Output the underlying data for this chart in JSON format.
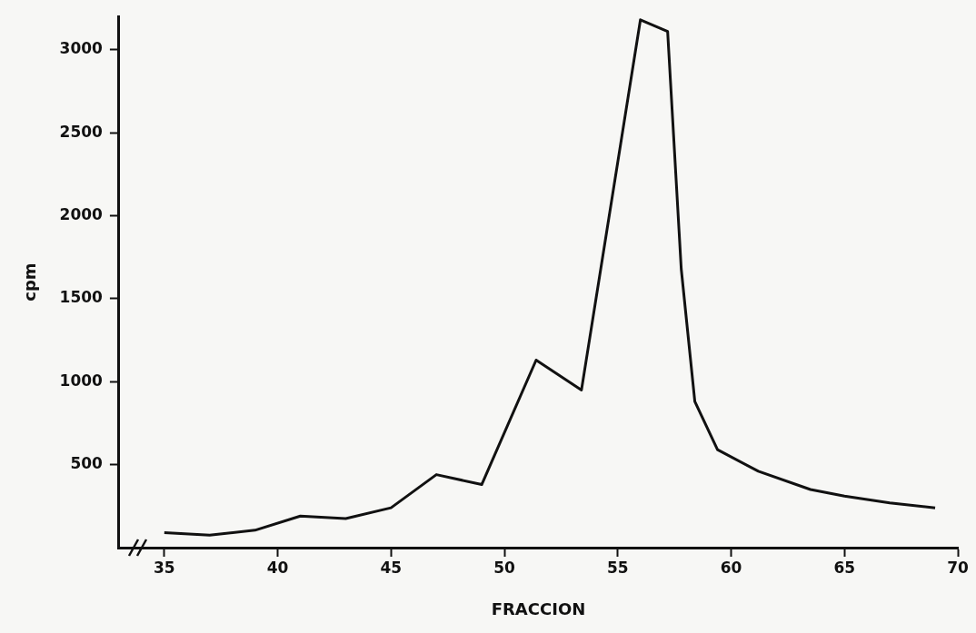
{
  "chart_data": {
    "type": "line",
    "xlabel": "FRACCION",
    "ylabel": "cpm",
    "x": [
      35,
      37,
      39,
      41,
      43,
      45,
      47,
      49,
      51.4,
      53.4,
      56,
      57.2,
      57.8,
      58.4,
      59.4,
      61.2,
      63.5,
      65,
      67,
      69
    ],
    "series": [
      {
        "color": "#111111",
        "values": [
          90,
          75,
          105,
          190,
          175,
          240,
          440,
          380,
          1130,
          950,
          3180,
          3110,
          1680,
          880,
          590,
          460,
          350,
          310,
          270,
          240
        ]
      }
    ],
    "xlim": [
      33,
      70
    ],
    "xticks": [
      35,
      40,
      45,
      50,
      55,
      60,
      65,
      70
    ],
    "ylim": [
      0,
      3200
    ],
    "yticks": [
      500,
      1000,
      1500,
      2000,
      2500,
      3000
    ],
    "grid": false,
    "legend": false,
    "marker": "none",
    "line_style": "solid"
  }
}
